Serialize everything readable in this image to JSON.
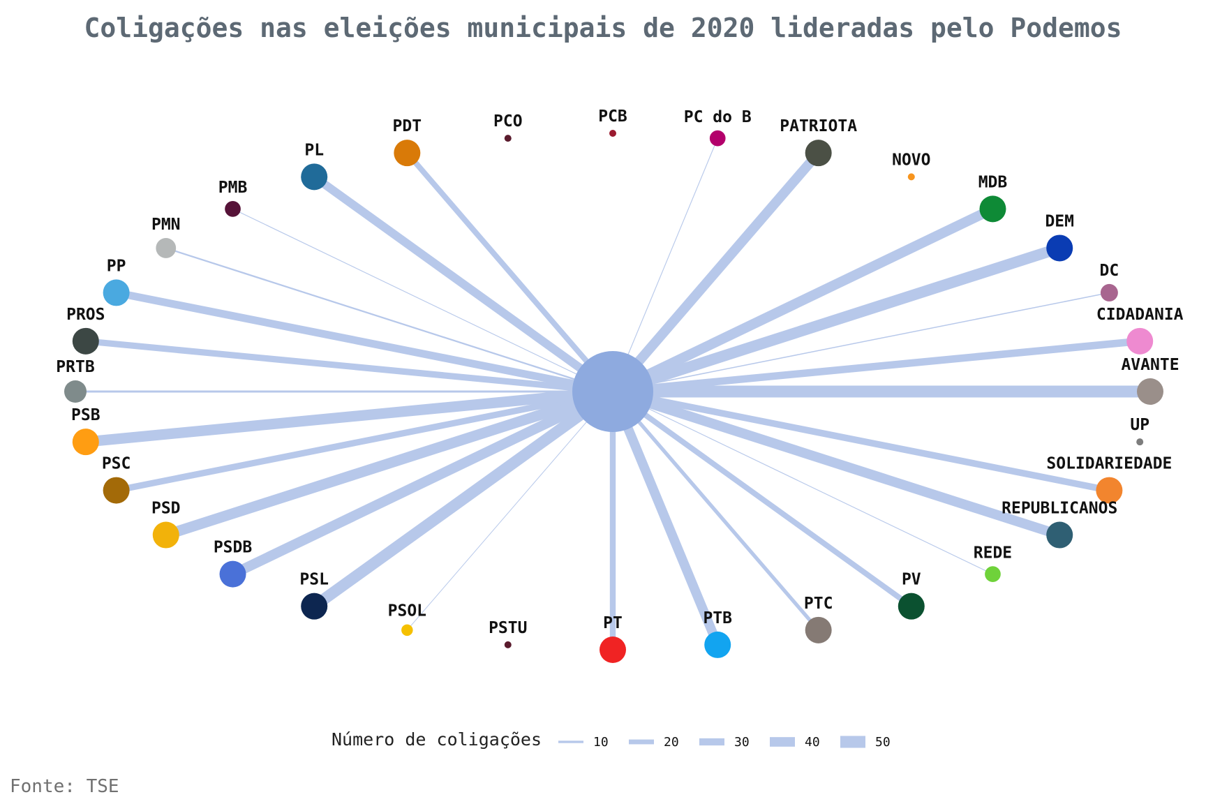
{
  "title": "Coligações nas eleições municipais de 2020 lideradas pelo Podemos",
  "source": "Fonte: TSE",
  "legend": {
    "title": "Número de coligações",
    "entries": [
      {
        "label": "10",
        "value": 10
      },
      {
        "label": "20",
        "value": 20
      },
      {
        "label": "30",
        "value": 30
      },
      {
        "label": "40",
        "value": 40
      },
      {
        "label": "50",
        "value": 50
      }
    ]
  },
  "colors": {
    "edge": "#b7c8ea",
    "hub": "#8eaadf"
  },
  "chart_data": {
    "type": "network",
    "center": "PODEMOS",
    "unit": "Número de coligações",
    "nodes": [
      {
        "name": "PCB",
        "value": 0,
        "color": "#9b1b30"
      },
      {
        "name": "PC do B",
        "value": 3,
        "color": "#b3006b"
      },
      {
        "name": "PATRIOTA",
        "value": 37,
        "color": "#4b5045"
      },
      {
        "name": "NOVO",
        "value": 0,
        "color": "#f7941d"
      },
      {
        "name": "MDB",
        "value": 38,
        "color": "#0e8a36"
      },
      {
        "name": "DEM",
        "value": 42,
        "color": "#0a3cb3"
      },
      {
        "name": "DC",
        "value": 4,
        "color": "#a8658f"
      },
      {
        "name": "CIDADANIA",
        "value": 28,
        "color": "#ee8ad0"
      },
      {
        "name": "AVANTE",
        "value": 45,
        "color": "#9a8f8a"
      },
      {
        "name": "UP",
        "value": 0,
        "color": "#7d7d7d"
      },
      {
        "name": "SOLIDARIEDADE",
        "value": 25,
        "color": "#f2852e"
      },
      {
        "name": "REPUBLICANOS",
        "value": 37,
        "color": "#2f5f73"
      },
      {
        "name": "REDE",
        "value": 3,
        "color": "#6fd23a"
      },
      {
        "name": "PV",
        "value": 21,
        "color": "#0b5130"
      },
      {
        "name": "PTC",
        "value": 14,
        "color": "#857a74"
      },
      {
        "name": "PTB",
        "value": 36,
        "color": "#12a4f0"
      },
      {
        "name": "PT",
        "value": 22,
        "color": "#f02323"
      },
      {
        "name": "PSTU",
        "value": 0,
        "color": "#5a1b2d"
      },
      {
        "name": "PSOL",
        "value": 1,
        "color": "#f5c000"
      },
      {
        "name": "PSL",
        "value": 43,
        "color": "#0d2650"
      },
      {
        "name": "PSDB",
        "value": 38,
        "color": "#4a71d8"
      },
      {
        "name": "PSD",
        "value": 40,
        "color": "#f2b20a"
      },
      {
        "name": "PSC",
        "value": 24,
        "color": "#a36a08"
      },
      {
        "name": "PSB",
        "value": 40,
        "color": "#ff9d12"
      },
      {
        "name": "PRTB",
        "value": 8,
        "color": "#7f8b8b"
      },
      {
        "name": "PROS",
        "value": 24,
        "color": "#3c4744"
      },
      {
        "name": "PP",
        "value": 29,
        "color": "#4aa9e0"
      },
      {
        "name": "PMN",
        "value": 6,
        "color": "#b5b8b8"
      },
      {
        "name": "PMB",
        "value": 3,
        "color": "#561338"
      },
      {
        "name": "PL",
        "value": 32,
        "color": "#206b99"
      },
      {
        "name": "PDT",
        "value": 21,
        "color": "#d97a08"
      },
      {
        "name": "PCO",
        "value": 0,
        "color": "#5a1b2d"
      }
    ]
  }
}
